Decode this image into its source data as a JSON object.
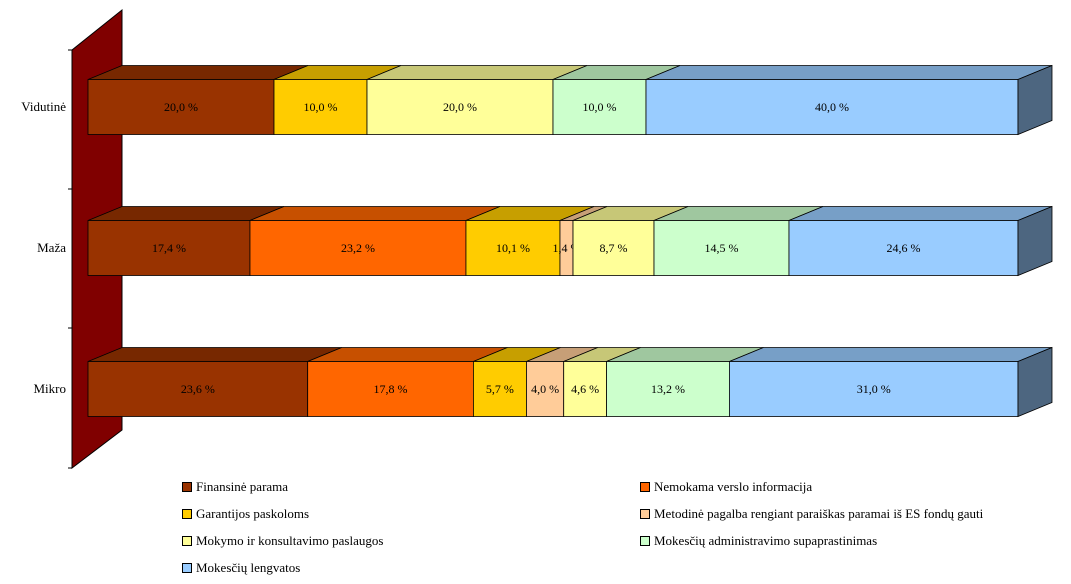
{
  "chart_data": {
    "type": "bar",
    "orientation": "horizontal",
    "stacked": "100%",
    "style": "3d",
    "categories": [
      "Vidutinė",
      "Maža",
      "Mikro"
    ],
    "series": [
      {
        "name": "Finansinė parama",
        "color": "#993300",
        "values": [
          20.0,
          17.4,
          23.6
        ],
        "labels": [
          "20,0 %",
          "17,4 %",
          "23,6 %"
        ]
      },
      {
        "name": "Nemokama verslo informacija",
        "color": "#FF6600",
        "values": [
          0,
          23.2,
          17.8
        ],
        "labels": [
          "",
          "23,2 %",
          "17,8 %"
        ]
      },
      {
        "name": "Garantijos paskoloms",
        "color": "#FFCC00",
        "values": [
          10.0,
          10.1,
          5.7
        ],
        "labels": [
          "10,0 %",
          "10,1 %",
          "5,7 %"
        ]
      },
      {
        "name": "Metodinė pagalba rengiant paraiškas paramai iš ES fondų gauti",
        "color": "#FFCC99",
        "values": [
          0,
          1.4,
          4.0
        ],
        "labels": [
          "",
          "1,4 %",
          "4,0 %"
        ]
      },
      {
        "name": "Mokymo ir konsultavimo paslaugos",
        "color": "#FFFF99",
        "values": [
          20.0,
          8.7,
          4.6
        ],
        "labels": [
          "20,0 %",
          "8,7 %",
          "4,6 %"
        ]
      },
      {
        "name": "Mokesčių administravimo supaprastinimas",
        "color": "#CCFFCC",
        "values": [
          10.0,
          14.5,
          13.2
        ],
        "labels": [
          "10,0 %",
          "14,5 %",
          "13,2 %"
        ]
      },
      {
        "name": "Mokesčių lengvatos",
        "color": "#99CCFF",
        "values": [
          40.0,
          24.6,
          31.0
        ],
        "labels": [
          "40,0 %",
          "24,6 %",
          "31,0 %"
        ]
      }
    ],
    "wall_color": "#800000",
    "legend_position": "bottom",
    "grid": false
  }
}
